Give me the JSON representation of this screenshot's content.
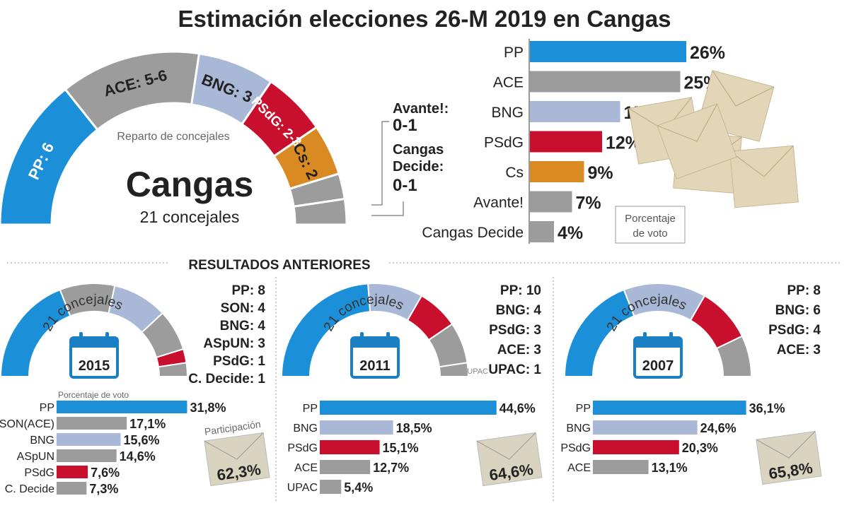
{
  "title": "Estimación elecciones 26-M 2019 en Cangas",
  "colors": {
    "PP": "#1b8fd8",
    "grey": "#9c9c9c",
    "BNG": "#a8b8d6",
    "PSdG": "#c8102e",
    "Cs": "#d98a22"
  },
  "chart_data": [
    {
      "type": "semicircle",
      "title": "Cangas",
      "subtitle": "21 concejales",
      "caption": "Reparto de concejales",
      "segments": [
        {
          "label": "PP: 6",
          "seats": 6,
          "color": "PP"
        },
        {
          "label": "ACE: 5-6",
          "seats": 5.5,
          "color": "grey"
        },
        {
          "label": "BNG: 3",
          "seats": 3,
          "color": "BNG"
        },
        {
          "label": "PSdG: 2-3",
          "seats": 2.5,
          "color": "PSdG"
        },
        {
          "label": "Cs: 2",
          "seats": 2,
          "color": "Cs"
        },
        {
          "label": "Avante!: 0-1",
          "seats": 1,
          "color": "grey"
        },
        {
          "label": "Cangas Decide: 0-1",
          "seats": 1,
          "color": "grey"
        }
      ],
      "callouts": [
        {
          "name": "Avante!:",
          "value": "0-1"
        },
        {
          "name": "Cangas Decide:",
          "value": "0-1"
        }
      ]
    },
    {
      "type": "bar",
      "caption": "Porcentaje de voto",
      "categories": [
        "PP",
        "ACE",
        "BNG",
        "PSdG",
        "Cs",
        "Avante!",
        "Cangas Decide"
      ],
      "values": [
        26,
        25,
        15,
        12,
        9,
        7,
        4
      ],
      "labels": [
        "26%",
        "25%",
        "15%",
        "12%",
        "9%",
        "7%",
        "4%"
      ],
      "colors": [
        "PP",
        "grey",
        "BNG",
        "PSdG",
        "Cs",
        "grey",
        "grey"
      ]
    }
  ],
  "previous": {
    "heading": "RESULTADOS ANTERIORES",
    "arc_label": "21 concejales",
    "years": [
      {
        "year": "2015",
        "seats": [
          [
            "PP",
            8,
            "PP"
          ],
          [
            "SON",
            4,
            "grey"
          ],
          [
            "BNG",
            4,
            "BNG"
          ],
          [
            "ASpUN",
            3,
            "grey"
          ],
          [
            "PSdG",
            1,
            "PSdG"
          ],
          [
            "C. Decide",
            1,
            "grey"
          ]
        ],
        "seat_labels": [
          "PP: 8",
          "SON: 4",
          "BNG: 4",
          "ASpUN: 3",
          "PSdG: 1",
          "C. Decide: 1"
        ],
        "bar_caption": "Porcentaje de voto",
        "categories": [
          "PP",
          "SON(ACE)",
          "BNG",
          "ASpUN",
          "PSdG",
          "C. Decide"
        ],
        "values": [
          31.8,
          17.1,
          15.6,
          14.6,
          7.6,
          7.3
        ],
        "labels": [
          "31,8%",
          "17,1%",
          "15,6%",
          "14,6%",
          "7,6%",
          "7,3%"
        ],
        "colors": [
          "PP",
          "grey",
          "BNG",
          "grey",
          "PSdG",
          "grey"
        ],
        "participation_label": "Participación",
        "participation": "62,3%"
      },
      {
        "year": "2011",
        "seats": [
          [
            "PP",
            10,
            "PP"
          ],
          [
            "BNG",
            4,
            "BNG"
          ],
          [
            "PSdG",
            3,
            "PSdG"
          ],
          [
            "ACE",
            3,
            "grey"
          ],
          [
            "UPAC",
            1,
            "grey"
          ]
        ],
        "seat_labels": [
          "PP: 10",
          "BNG: 4",
          "PSdG: 3",
          "ACE: 3",
          "UPAC: 1"
        ],
        "categories": [
          "PP",
          "BNG",
          "PSdG",
          "ACE",
          "UPAC"
        ],
        "values": [
          44.6,
          18.5,
          15.1,
          12.7,
          5.4
        ],
        "labels": [
          "44,6%",
          "18,5%",
          "15,1%",
          "12,7%",
          "5,4%"
        ],
        "colors": [
          "PP",
          "BNG",
          "PSdG",
          "grey",
          "grey"
        ],
        "participation": "64,6%"
      },
      {
        "year": "2007",
        "seats": [
          [
            "PP",
            8,
            "PP"
          ],
          [
            "BNG",
            6,
            "BNG"
          ],
          [
            "PSdG",
            4,
            "PSdG"
          ],
          [
            "ACE",
            3,
            "grey"
          ]
        ],
        "seat_labels": [
          "PP: 8",
          "BNG: 6",
          "PSdG: 4",
          "ACE: 3"
        ],
        "categories": [
          "PP",
          "BNG",
          "PSdG",
          "ACE"
        ],
        "values": [
          36.1,
          24.6,
          20.3,
          13.1
        ],
        "labels": [
          "36,1%",
          "24,6%",
          "20,3%",
          "13,1%"
        ],
        "colors": [
          "PP",
          "BNG",
          "PSdG",
          "grey"
        ],
        "participation": "65,8%"
      }
    ]
  }
}
